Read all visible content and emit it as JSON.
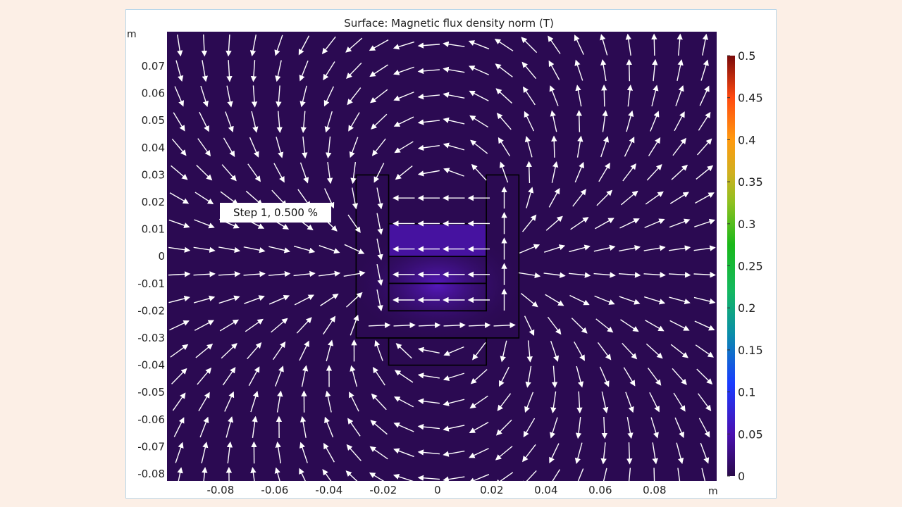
{
  "chart_data": {
    "type": "heatmap",
    "title": "Surface: Magnetic flux density norm (T)",
    "x_unit": "m",
    "y_unit": "m",
    "xlim": [
      -0.0997,
      0.1029
    ],
    "ylim": [
      -0.0826,
      0.0827
    ],
    "x_ticks": [
      "-0.08",
      "-0.06",
      "-0.04",
      "-0.02",
      "0",
      "0.02",
      "0.04",
      "0.06",
      "0.08"
    ],
    "x_tick_values": [
      -0.08,
      -0.06,
      -0.04,
      -0.02,
      0,
      0.02,
      0.04,
      0.06,
      0.08
    ],
    "y_ticks": [
      "0.07",
      "0.06",
      "0.05",
      "0.04",
      "0.03",
      "0.02",
      "0.01",
      "0",
      "-0.01",
      "-0.02",
      "-0.03",
      "-0.04",
      "-0.05",
      "-0.06",
      "-0.07",
      "-0.08"
    ],
    "y_tick_values": [
      0.07,
      0.06,
      0.05,
      0.04,
      0.03,
      0.02,
      0.01,
      0,
      -0.01,
      -0.02,
      -0.03,
      -0.04,
      -0.05,
      -0.06,
      -0.07,
      -0.08
    ],
    "colorbar": {
      "range": [
        0,
        0.5
      ],
      "ticks": [
        "0.5",
        "0.45",
        "0.4",
        "0.35",
        "0.3",
        "0.25",
        "0.2",
        "0.15",
        "0.1",
        "0.05",
        "0"
      ],
      "tick_values": [
        0.5,
        0.45,
        0.4,
        0.35,
        0.3,
        0.25,
        0.2,
        0.15,
        0.1,
        0.05,
        0
      ],
      "colormap": "rainbow"
    },
    "annotation": "Step 1, 0.500 %",
    "arrows": "white arrow field, normalized length",
    "colors": {
      "background_field": "#2b0a52",
      "core_glow": "#4a16a6",
      "arrow": "#ffffff",
      "outline": "#000000"
    }
  }
}
